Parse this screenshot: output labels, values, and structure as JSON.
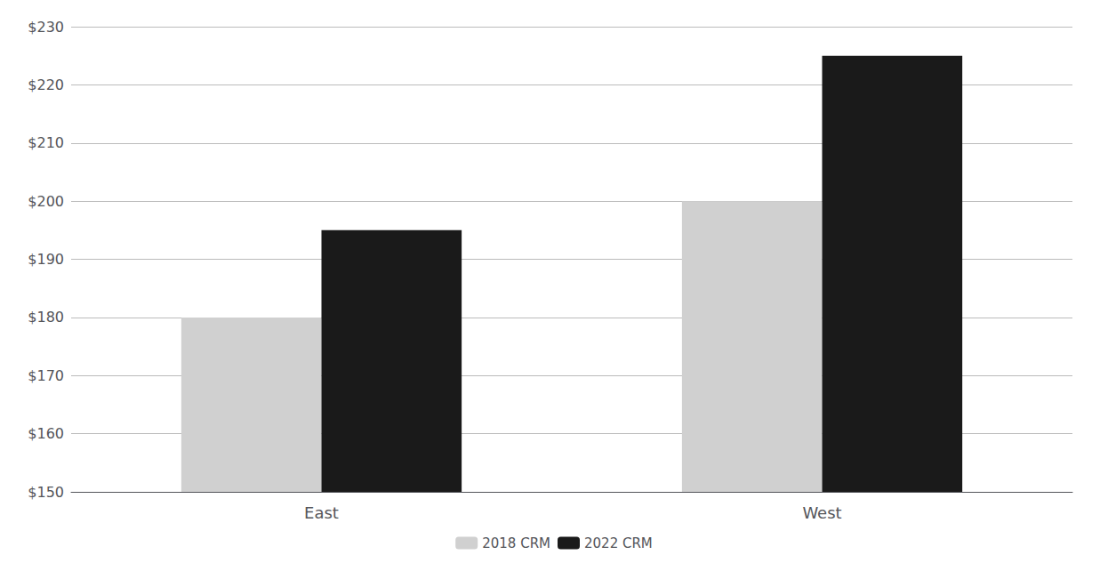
{
  "chart_data": {
    "type": "bar",
    "categories": [
      "East",
      "West"
    ],
    "series": [
      {
        "name": "2018 CRM",
        "color": "#d0d0d0",
        "values": [
          180,
          200
        ]
      },
      {
        "name": "2022 CRM",
        "color": "#1a1a1a",
        "values": [
          195,
          225
        ]
      }
    ],
    "ylim": [
      150,
      230
    ],
    "yticks": [
      {
        "value": 150,
        "label": "$150"
      },
      {
        "value": 160,
        "label": "$160"
      },
      {
        "value": 170,
        "label": "$170"
      },
      {
        "value": 180,
        "label": "$180"
      },
      {
        "value": 190,
        "label": "$190"
      },
      {
        "value": 200,
        "label": "$200"
      },
      {
        "value": 210,
        "label": "$210"
      },
      {
        "value": 220,
        "label": "$220"
      },
      {
        "value": 230,
        "label": "$230"
      }
    ],
    "grid": true,
    "legend": "bottom"
  }
}
